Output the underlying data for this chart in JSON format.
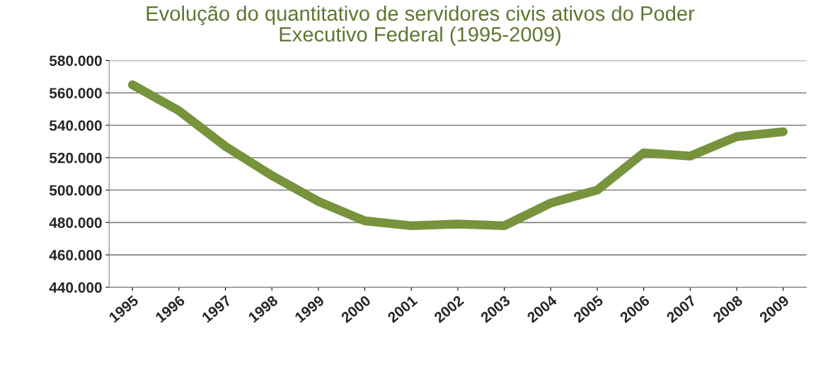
{
  "chart_data": {
    "type": "line",
    "title": "Evolução do quantitativo de servidores civis ativos do Poder\nExecutivo Federal (1995-2009)",
    "categories": [
      "1995",
      "1996",
      "1997",
      "1998",
      "1999",
      "2000",
      "2001",
      "2002",
      "2003",
      "2004",
      "2005",
      "2006",
      "2007",
      "2008",
      "2009"
    ],
    "series": [
      {
        "color": "#77933c",
        "values": [
          565000,
          549000,
          527000,
          509000,
          493000,
          481000,
          478000,
          479000,
          478000,
          492000,
          500000,
          523000,
          521000,
          533000,
          536000
        ]
      }
    ],
    "ylim": [
      440000,
      580000
    ],
    "yticks": [
      {
        "value": 440000,
        "label": "440.000"
      },
      {
        "value": 460000,
        "label": "460.000"
      },
      {
        "value": 480000,
        "label": "480.000"
      },
      {
        "value": 500000,
        "label": "500.000"
      },
      {
        "value": 520000,
        "label": "520.000"
      },
      {
        "value": 540000,
        "label": "540.000"
      },
      {
        "value": 560000,
        "label": "560.000"
      },
      {
        "value": 580000,
        "label": "580.000"
      }
    ],
    "grid": "y",
    "line_style": "solid",
    "legend": false
  }
}
